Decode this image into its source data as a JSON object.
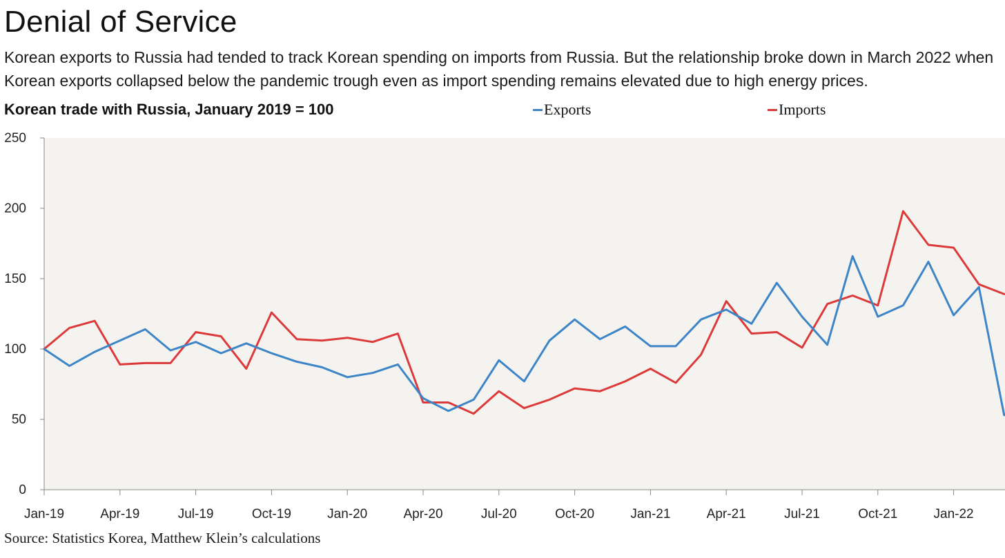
{
  "title": "Denial of Service",
  "subtitle": "Korean exports to Russia had tended to track Korean spending on imports from Russia. But the relationship broke down in March 2022 when Korean exports collapsed below the pandemic trough even as import spending remains elevated due to high energy prices.",
  "chart_heading": "Korean trade with Russia, January 2019 = 100",
  "source": "Source: Statistics Korea, Matthew Klein’s calculations",
  "colors": {
    "exports": "#3d85c6",
    "imports": "#dc3a3a",
    "plot_bg": "#f5f3ef"
  },
  "chart_data": {
    "type": "line",
    "x": [
      "Jan-19",
      "Feb-19",
      "Mar-19",
      "Apr-19",
      "May-19",
      "Jun-19",
      "Jul-19",
      "Aug-19",
      "Sep-19",
      "Oct-19",
      "Nov-19",
      "Dec-19",
      "Jan-20",
      "Feb-20",
      "Mar-20",
      "Apr-20",
      "May-20",
      "Jun-20",
      "Jul-20",
      "Aug-20",
      "Sep-20",
      "Oct-20",
      "Nov-20",
      "Dec-20",
      "Jan-21",
      "Feb-21",
      "Mar-21",
      "Apr-21",
      "May-21",
      "Jun-21",
      "Jul-21",
      "Aug-21",
      "Sep-21",
      "Oct-21",
      "Nov-21",
      "Dec-21",
      "Jan-22",
      "Feb-22",
      "Mar-22"
    ],
    "x_tick_labels": [
      "Jan-19",
      "Apr-19",
      "Jul-19",
      "Oct-19",
      "Jan-20",
      "Apr-20",
      "Jul-20",
      "Oct-20",
      "Jan-21",
      "Apr-21",
      "Jul-21",
      "Oct-21",
      "Jan-22"
    ],
    "y_ticks": [
      0,
      50,
      100,
      150,
      200,
      250
    ],
    "ylim": [
      0,
      250
    ],
    "series": [
      {
        "name": "Exports",
        "color": "#3d85c6",
        "values": [
          100,
          88,
          98,
          106,
          114,
          99,
          105,
          97,
          104,
          97,
          91,
          87,
          80,
          83,
          89,
          65,
          56,
          64,
          92,
          77,
          106,
          121,
          107,
          116,
          102,
          102,
          121,
          128,
          118,
          147,
          123,
          103,
          166,
          123,
          131,
          162,
          124,
          144,
          53
        ]
      },
      {
        "name": "Imports",
        "color": "#dc3a3a",
        "values": [
          100,
          115,
          120,
          89,
          90,
          90,
          112,
          109,
          86,
          126,
          107,
          106,
          108,
          105,
          111,
          62,
          62,
          54,
          70,
          58,
          64,
          72,
          70,
          77,
          86,
          76,
          96,
          134,
          111,
          112,
          101,
          132,
          138,
          131,
          198,
          174,
          172,
          146,
          139
        ]
      }
    ],
    "grid": false
  }
}
